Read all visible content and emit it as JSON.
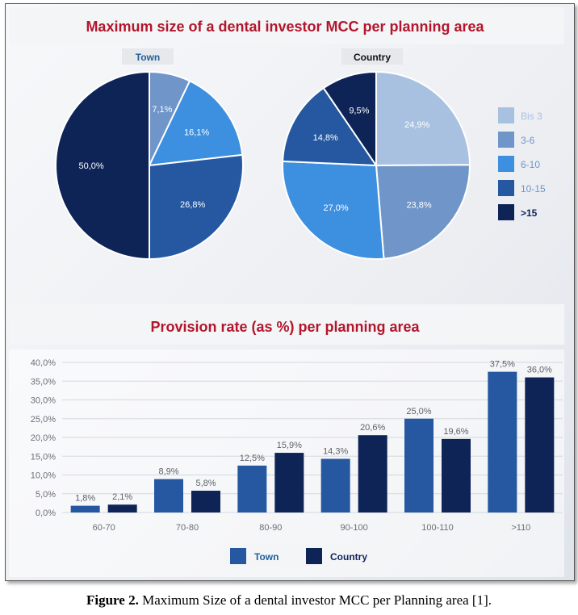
{
  "colors": {
    "bis3": "#a9c1e0",
    "c3_6": "#6f95c9",
    "c6_10": "#3d8fe0",
    "c10_15": "#2558a0",
    "c15": "#0e2457",
    "title_red": "#b3162c",
    "header_blue": "#1f5f9c",
    "bar_town": "#2558a0",
    "bar_country": "#0e2457"
  },
  "caption": {
    "label": "Figure 2.",
    "text": " Maximum Size of a dental investor MCC per Planning area [1]."
  },
  "chart_data": [
    {
      "type": "pie",
      "title": "Maximum size of a dental investor MCC per planning area",
      "subtitle": "Town",
      "categories": [
        "Bis 3",
        "3-6",
        "6-10",
        "10-15",
        ">15"
      ],
      "values": [
        0.0,
        7.1,
        16.1,
        26.8,
        50.0
      ],
      "labels": [
        "",
        "7,1%",
        "16,1%",
        "26,8%",
        "50,0%"
      ],
      "legend_position": "right"
    },
    {
      "type": "pie",
      "subtitle": "Country",
      "categories": [
        "Bis 3",
        "3-6",
        "6-10",
        "10-15",
        ">15"
      ],
      "values": [
        24.9,
        23.8,
        27.0,
        14.8,
        9.5
      ],
      "labels": [
        "24,9%",
        "23,8%",
        "27,0%",
        "14,8%",
        "9,5%"
      ],
      "legend": [
        "Bis 3",
        "3-6",
        "6-10",
        "10-15",
        ">15"
      ],
      "legend_position": "right"
    },
    {
      "type": "bar",
      "title": "Provision rate (as %) per planning area",
      "categories": [
        "60-70",
        "70-80",
        "80-90",
        "90-100",
        "100-110",
        ">110"
      ],
      "series": [
        {
          "name": "Town",
          "values": [
            1.8,
            8.9,
            12.5,
            14.3,
            25.0,
            37.5
          ],
          "labels": [
            "1,8%",
            "8,9%",
            "12,5%",
            "14,3%",
            "25,0%",
            "37,5%"
          ]
        },
        {
          "name": "Country",
          "values": [
            2.1,
            5.8,
            15.9,
            20.6,
            19.6,
            36.0
          ],
          "labels": [
            "2,1%",
            "5,8%",
            "15,9%",
            "20,6%",
            "19,6%",
            "36,0%"
          ]
        }
      ],
      "yticks": [
        "0,0%",
        "5,0%",
        "10,0%",
        "15,0%",
        "20,0%",
        "25,0%",
        "30,0%",
        "35,0%",
        "40,0%"
      ],
      "ylim": [
        0,
        40
      ],
      "legend_position": "bottom"
    }
  ]
}
